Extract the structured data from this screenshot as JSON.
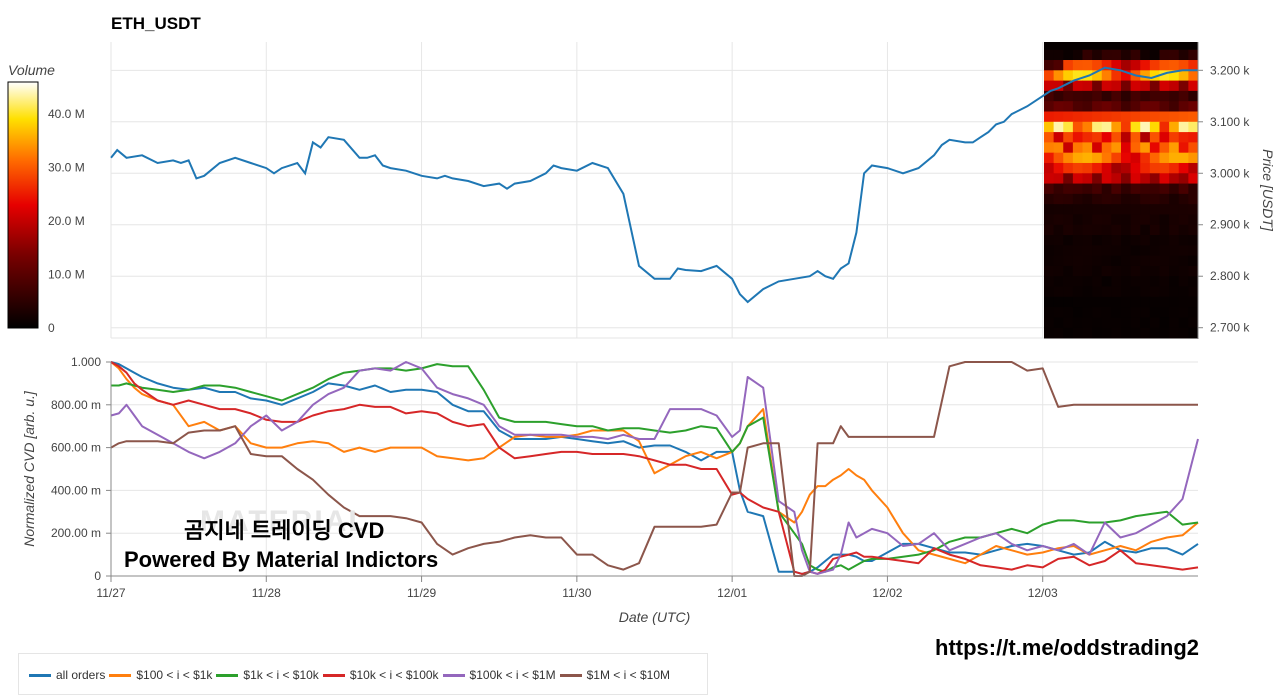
{
  "title": "ETH_USDT",
  "watermark": {
    "line1": "곰지네 트레이딩 CVD",
    "line2": "Powered By Material Indictors",
    "ghost": "MATERIAL"
  },
  "url": "https://t.me/oddstrading2",
  "colors": {
    "all": "#1f77b4",
    "s100": "#ff7f0e",
    "s1k": "#2ca02c",
    "s10k": "#d62728",
    "s100k": "#9467bd",
    "s1M": "#8c564b",
    "grid": "#e6e6e6",
    "axis": "#888888"
  },
  "volume_colorbar": {
    "label": "Volume",
    "ticks": [
      "40.0 M",
      "30.0 M",
      "20.0 M",
      "10.0 M",
      "0"
    ],
    "tick_values": [
      40,
      30,
      20,
      10,
      0
    ],
    "max": 46
  },
  "x_axis": {
    "label": "Date (UTC)",
    "ticks": [
      "11/27",
      "11/28",
      "11/29",
      "11/30",
      "12/01",
      "12/02",
      "12/03"
    ],
    "range_days": [
      0,
      7
    ]
  },
  "legend": [
    {
      "key": "all",
      "label": "all orders"
    },
    {
      "key": "s100",
      "label": "$100 < i < $1k"
    },
    {
      "key": "s1k",
      "label": "$1k < i < $10k"
    },
    {
      "key": "s10k",
      "label": "$10k < i < $100k"
    },
    {
      "key": "s100k",
      "label": "$100k < i < $1M"
    },
    {
      "key": "s1M",
      "label": "$1M < i < $10M"
    }
  ],
  "chart_data": [
    {
      "type": "line",
      "title": "ETH_USDT",
      "ylabel": "Price [USDT]",
      "ylim": [
        2680,
        3255
      ],
      "yticks": [
        2700,
        2800,
        2900,
        3000,
        3100,
        3200
      ],
      "ytick_labels": [
        "2.700 k",
        "2.800 k",
        "2.900 k",
        "3.000 k",
        "3.100 k",
        "3.200 k"
      ],
      "x_days": [
        0,
        0.04,
        0.1,
        0.2,
        0.3,
        0.4,
        0.45,
        0.5,
        0.55,
        0.6,
        0.7,
        0.8,
        0.9,
        1.0,
        1.05,
        1.1,
        1.2,
        1.25,
        1.3,
        1.35,
        1.4,
        1.5,
        1.6,
        1.65,
        1.7,
        1.75,
        1.8,
        1.9,
        2.0,
        2.1,
        2.15,
        2.2,
        2.3,
        2.4,
        2.5,
        2.55,
        2.6,
        2.7,
        2.8,
        2.85,
        2.9,
        3.0,
        3.1,
        3.2,
        3.3,
        3.4,
        3.5,
        3.6,
        3.65,
        3.7,
        3.8,
        3.9,
        4.0,
        4.05,
        4.1,
        4.2,
        4.3,
        4.4,
        4.5,
        4.55,
        4.6,
        4.65,
        4.7,
        4.75,
        4.8,
        4.85,
        4.9,
        5.0,
        5.1,
        5.2,
        5.3,
        5.35,
        5.4,
        5.5,
        5.55,
        5.6,
        5.65,
        5.7,
        5.75,
        5.8,
        5.9,
        6.0,
        6.05,
        6.1,
        6.2,
        6.3,
        6.4,
        6.5,
        6.6,
        6.7,
        6.8,
        6.9,
        6.95,
        7.0
      ],
      "price": [
        3030,
        3045,
        3030,
        3035,
        3020,
        3025,
        3020,
        3025,
        2990,
        2995,
        3020,
        3030,
        3020,
        3010,
        3000,
        3010,
        3020,
        3000,
        3060,
        3050,
        3070,
        3065,
        3030,
        3030,
        3035,
        3015,
        3010,
        3005,
        2995,
        2990,
        2995,
        2990,
        2985,
        2975,
        2980,
        2970,
        2980,
        2985,
        3000,
        3015,
        3010,
        3005,
        3020,
        3010,
        2960,
        2820,
        2795,
        2795,
        2815,
        2812,
        2810,
        2820,
        2795,
        2765,
        2750,
        2775,
        2790,
        2795,
        2800,
        2810,
        2800,
        2795,
        2815,
        2825,
        2885,
        3000,
        3015,
        3010,
        3000,
        3010,
        3035,
        3055,
        3065,
        3060,
        3060,
        3070,
        3080,
        3095,
        3100,
        3115,
        3130,
        3150,
        3160,
        3165,
        3180,
        3190,
        3205,
        3200,
        3190,
        3185,
        3195,
        3200,
        3200,
        3200
      ],
      "volume_profile_levels": [
        3230,
        3210,
        3190,
        3170,
        3150,
        3130,
        3110,
        3090,
        3070,
        3050,
        3030,
        3010,
        2990,
        2970,
        2950,
        2930,
        2910,
        2890,
        2870,
        2850,
        2830,
        2810,
        2790,
        2770,
        2750,
        2730,
        2710,
        2690
      ],
      "volume_profile_values": [
        6,
        30,
        40,
        22,
        8,
        12,
        45,
        44,
        30,
        35,
        36,
        28,
        22,
        8,
        5,
        4,
        3,
        3,
        2,
        2,
        2,
        2,
        1.5,
        1.5,
        1,
        1,
        1,
        1
      ]
    },
    {
      "type": "line",
      "ylabel": "Normalized CVD [arb. u.]",
      "ylim": [
        0,
        1.0
      ],
      "yticks": [
        0,
        0.2,
        0.4,
        0.6,
        0.8,
        1.0
      ],
      "ytick_labels": [
        "0",
        "200.00 m",
        "400.00 m",
        "600.00 m",
        "800.00 m",
        "1.000"
      ],
      "x_days": [
        0,
        0.05,
        0.1,
        0.15,
        0.2,
        0.3,
        0.4,
        0.5,
        0.6,
        0.7,
        0.8,
        0.9,
        1.0,
        1.1,
        1.2,
        1.3,
        1.4,
        1.5,
        1.6,
        1.7,
        1.8,
        1.9,
        2.0,
        2.1,
        2.2,
        2.3,
        2.4,
        2.5,
        2.6,
        2.7,
        2.8,
        2.9,
        3.0,
        3.1,
        3.2,
        3.3,
        3.4,
        3.5,
        3.6,
        3.7,
        3.8,
        3.9,
        4.0,
        4.05,
        4.1,
        4.2,
        4.3,
        4.4,
        4.45,
        4.5,
        4.55,
        4.6,
        4.65,
        4.7,
        4.75,
        4.8,
        4.85,
        4.9,
        5.0,
        5.1,
        5.2,
        5.3,
        5.4,
        5.5,
        5.6,
        5.7,
        5.8,
        5.9,
        6.0,
        6.1,
        6.2,
        6.3,
        6.4,
        6.5,
        6.6,
        6.7,
        6.8,
        6.9,
        7.0
      ],
      "series": [
        {
          "key": "all",
          "name": "all orders",
          "values": [
            1.0,
            0.99,
            0.97,
            0.95,
            0.93,
            0.9,
            0.88,
            0.87,
            0.88,
            0.86,
            0.86,
            0.83,
            0.82,
            0.8,
            0.83,
            0.86,
            0.9,
            0.89,
            0.87,
            0.89,
            0.86,
            0.87,
            0.87,
            0.86,
            0.8,
            0.77,
            0.77,
            0.68,
            0.64,
            0.64,
            0.64,
            0.65,
            0.64,
            0.63,
            0.62,
            0.63,
            0.6,
            0.61,
            0.61,
            0.58,
            0.54,
            0.58,
            0.58,
            0.4,
            0.3,
            0.28,
            0.02,
            0.02,
            0.01,
            0.02,
            0.04,
            0.07,
            0.1,
            0.1,
            0.1,
            0.09,
            0.07,
            0.07,
            0.11,
            0.15,
            0.15,
            0.13,
            0.11,
            0.11,
            0.1,
            0.12,
            0.14,
            0.15,
            0.14,
            0.12,
            0.1,
            0.11,
            0.16,
            0.12,
            0.11,
            0.13,
            0.13,
            0.1,
            0.15
          ]
        },
        {
          "key": "s100",
          "name": "$100 < i < $1k",
          "values": [
            1.0,
            0.97,
            0.92,
            0.88,
            0.85,
            0.82,
            0.8,
            0.7,
            0.72,
            0.68,
            0.7,
            0.62,
            0.6,
            0.6,
            0.62,
            0.63,
            0.62,
            0.58,
            0.6,
            0.58,
            0.6,
            0.6,
            0.6,
            0.56,
            0.55,
            0.54,
            0.55,
            0.6,
            0.65,
            0.66,
            0.65,
            0.65,
            0.66,
            0.68,
            0.68,
            0.68,
            0.63,
            0.48,
            0.52,
            0.56,
            0.58,
            0.55,
            0.58,
            0.62,
            0.7,
            0.78,
            0.3,
            0.25,
            0.3,
            0.38,
            0.42,
            0.42,
            0.45,
            0.47,
            0.5,
            0.47,
            0.45,
            0.4,
            0.32,
            0.2,
            0.12,
            0.1,
            0.08,
            0.06,
            0.1,
            0.14,
            0.12,
            0.1,
            0.11,
            0.13,
            0.14,
            0.1,
            0.12,
            0.14,
            0.12,
            0.16,
            0.18,
            0.19,
            0.25
          ]
        },
        {
          "key": "s1k",
          "name": "$1k < i < $10k",
          "values": [
            0.89,
            0.89,
            0.9,
            0.89,
            0.88,
            0.87,
            0.86,
            0.87,
            0.89,
            0.89,
            0.88,
            0.86,
            0.84,
            0.82,
            0.85,
            0.88,
            0.92,
            0.95,
            0.96,
            0.97,
            0.97,
            0.96,
            0.97,
            0.99,
            0.98,
            0.98,
            0.87,
            0.74,
            0.72,
            0.72,
            0.72,
            0.71,
            0.7,
            0.7,
            0.68,
            0.69,
            0.69,
            0.68,
            0.67,
            0.68,
            0.7,
            0.69,
            0.58,
            0.62,
            0.7,
            0.74,
            0.3,
            0.2,
            0.15,
            0.05,
            0.03,
            0.02,
            0.04,
            0.05,
            0.03,
            0.05,
            0.07,
            0.08,
            0.08,
            0.09,
            0.1,
            0.12,
            0.16,
            0.18,
            0.18,
            0.2,
            0.22,
            0.2,
            0.24,
            0.26,
            0.26,
            0.25,
            0.25,
            0.26,
            0.28,
            0.29,
            0.3,
            0.24,
            0.25
          ]
        },
        {
          "key": "s10k",
          "name": "$10k < i < $100k",
          "values": [
            1.0,
            0.98,
            0.95,
            0.9,
            0.87,
            0.82,
            0.8,
            0.82,
            0.8,
            0.78,
            0.78,
            0.76,
            0.73,
            0.72,
            0.72,
            0.75,
            0.77,
            0.78,
            0.8,
            0.79,
            0.79,
            0.76,
            0.77,
            0.76,
            0.72,
            0.7,
            0.71,
            0.6,
            0.55,
            0.56,
            0.57,
            0.58,
            0.58,
            0.57,
            0.57,
            0.57,
            0.56,
            0.54,
            0.52,
            0.52,
            0.5,
            0.5,
            0.38,
            0.39,
            0.36,
            0.32,
            0.3,
            0.02,
            0.01,
            0.02,
            0.01,
            0.03,
            0.08,
            0.09,
            0.1,
            0.11,
            0.09,
            0.09,
            0.08,
            0.07,
            0.06,
            0.13,
            0.1,
            0.08,
            0.05,
            0.04,
            0.03,
            0.05,
            0.04,
            0.08,
            0.09,
            0.05,
            0.07,
            0.12,
            0.06,
            0.05,
            0.04,
            0.03,
            0.04
          ]
        },
        {
          "key": "s100k",
          "name": "$100k < i < $1M",
          "values": [
            0.75,
            0.76,
            0.8,
            0.75,
            0.7,
            0.66,
            0.62,
            0.58,
            0.55,
            0.58,
            0.62,
            0.7,
            0.75,
            0.68,
            0.72,
            0.8,
            0.85,
            0.88,
            0.96,
            0.97,
            0.96,
            1.0,
            0.97,
            0.88,
            0.85,
            0.83,
            0.8,
            0.7,
            0.66,
            0.66,
            0.66,
            0.66,
            0.65,
            0.65,
            0.64,
            0.66,
            0.64,
            0.64,
            0.78,
            0.78,
            0.78,
            0.75,
            0.65,
            0.68,
            0.93,
            0.88,
            0.35,
            0.3,
            0.12,
            0.02,
            0.01,
            0.02,
            0.03,
            0.1,
            0.25,
            0.18,
            0.2,
            0.22,
            0.2,
            0.14,
            0.15,
            0.2,
            0.12,
            0.15,
            0.18,
            0.2,
            0.15,
            0.12,
            0.14,
            0.12,
            0.15,
            0.1,
            0.25,
            0.18,
            0.2,
            0.24,
            0.28,
            0.36,
            0.64
          ]
        },
        {
          "key": "s1M",
          "name": "$1M < i < $10M",
          "values": [
            0.6,
            0.62,
            0.63,
            0.63,
            0.63,
            0.63,
            0.62,
            0.67,
            0.68,
            0.68,
            0.7,
            0.57,
            0.56,
            0.56,
            0.5,
            0.45,
            0.38,
            0.32,
            0.28,
            0.28,
            0.28,
            0.27,
            0.25,
            0.15,
            0.1,
            0.13,
            0.15,
            0.16,
            0.18,
            0.19,
            0.18,
            0.18,
            0.1,
            0.1,
            0.05,
            0.03,
            0.06,
            0.23,
            0.23,
            0.23,
            0.23,
            0.24,
            0.39,
            0.39,
            0.6,
            0.62,
            0.62,
            0.0,
            0.0,
            0.02,
            0.62,
            0.62,
            0.62,
            0.7,
            0.65,
            0.65,
            0.65,
            0.65,
            0.65,
            0.65,
            0.65,
            0.65,
            0.98,
            1.0,
            1.0,
            1.0,
            1.0,
            0.96,
            0.97,
            0.79,
            0.8,
            0.8,
            0.8,
            0.8,
            0.8,
            0.8,
            0.8,
            0.8,
            0.8
          ]
        }
      ]
    }
  ]
}
